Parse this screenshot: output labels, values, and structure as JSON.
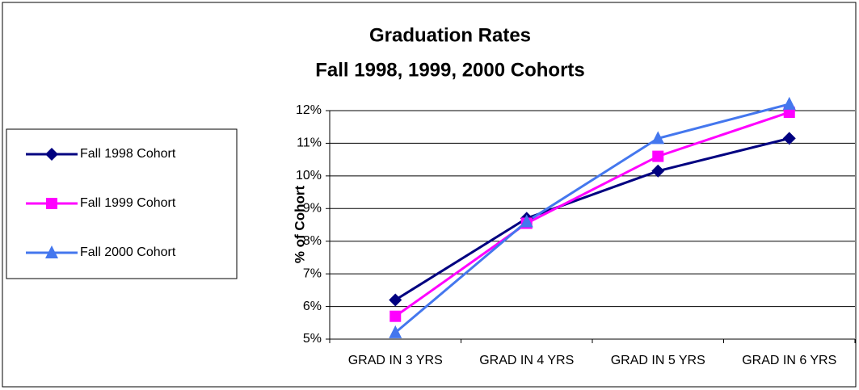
{
  "chart_data": {
    "type": "line",
    "title": "Graduation Rates",
    "subtitle": "Fall 1998, 1999, 2000 Cohorts",
    "y_label": "% of Cohort",
    "categories": [
      "GRAD IN 3 YRS",
      "GRAD IN 4 YRS",
      "GRAD IN 5 YRS",
      "GRAD IN 6 YRS"
    ],
    "series": [
      {
        "name": "Fall 1998 Cohort",
        "color": "#000080",
        "marker": "diamond",
        "values": [
          6.2,
          8.7,
          10.15,
          11.15
        ]
      },
      {
        "name": "Fall 1999 Cohort",
        "color": "#ff00ff",
        "marker": "square",
        "values": [
          5.7,
          8.55,
          10.6,
          11.95
        ]
      },
      {
        "name": "Fall 2000 Cohort",
        "color": "#4477ee",
        "marker": "triangle",
        "values": [
          5.2,
          8.6,
          11.15,
          12.2
        ]
      }
    ],
    "ylim": [
      5,
      12
    ],
    "yticks": [
      {
        "value": 5,
        "label": "5%"
      },
      {
        "value": 6,
        "label": "6%"
      },
      {
        "value": 7,
        "label": "7%"
      },
      {
        "value": 8,
        "label": "8%"
      },
      {
        "value": 9,
        "label": "9%"
      },
      {
        "value": 10,
        "label": "10%"
      },
      {
        "value": 11,
        "label": "11%"
      },
      {
        "value": 12,
        "label": "12%"
      }
    ],
    "grid": true,
    "legend": "left"
  }
}
